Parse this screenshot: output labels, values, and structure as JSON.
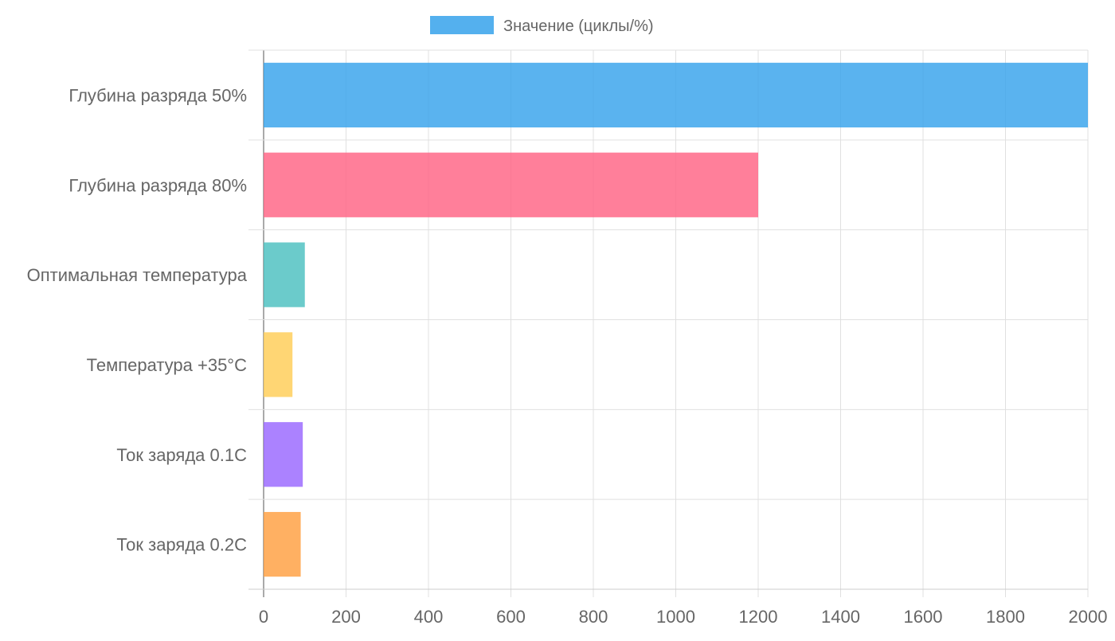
{
  "chart_data": {
    "type": "bar",
    "orientation": "horizontal",
    "legend": {
      "label": "Значение (циклы/%)",
      "color": "#36a2eb",
      "placement": "top"
    },
    "categories": [
      "Глубина разряда 50%",
      "Глубина разряда 80%",
      "Оптимальная температура",
      "Температура +35°C",
      "Ток заряда 0.1C",
      "Ток заряда 0.2C"
    ],
    "series": [
      {
        "name": "Значение (циклы/%)",
        "values": [
          2000,
          1200,
          100,
          70,
          95,
          90
        ]
      }
    ],
    "colors": [
      "#36a2eb",
      "#ff6384",
      "#4bc0c0",
      "#ffcd56",
      "#9966ff",
      "#ff9f40"
    ],
    "xlim": [
      0,
      2000
    ],
    "xticks": [
      "0",
      "200",
      "400",
      "600",
      "800",
      "1000",
      "1200",
      "1400",
      "1600",
      "1800",
      "2000"
    ],
    "grid": true
  }
}
